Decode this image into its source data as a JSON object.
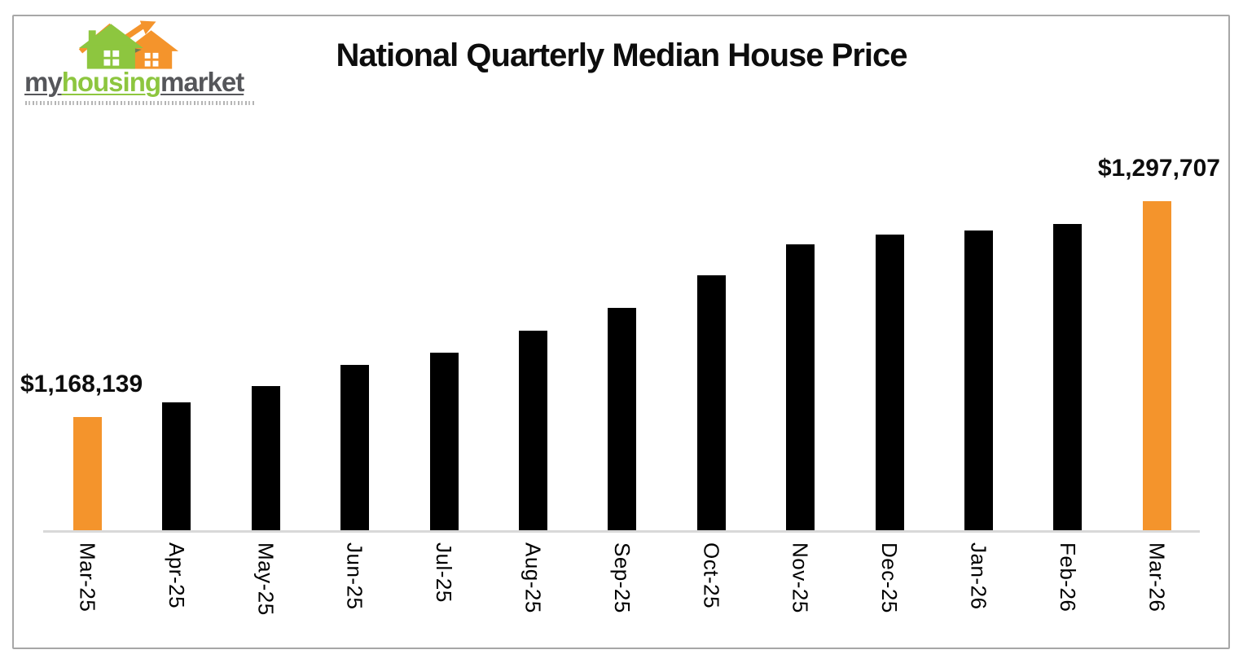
{
  "logo": {
    "wordmark_part1": "my",
    "wordmark_part2": "housing",
    "wordmark_part3": "market",
    "icon": "two-houses-with-rising-arrow",
    "colors": {
      "green": "#8dc63f",
      "gray": "#55565a",
      "orange": "#f4942c"
    }
  },
  "header": {
    "title": "National Quarterly Median House Price"
  },
  "chart_data": {
    "type": "bar",
    "title": "National Quarterly Median House Price",
    "categories": [
      "Mar-25",
      "Apr-25",
      "May-25",
      "Jun-25",
      "Jul-25",
      "Aug-25",
      "Sep-25",
      "Oct-25",
      "Nov-25",
      "Dec-25",
      "Jan-26",
      "Feb-26",
      "Mar-26"
    ],
    "values": [
      1168139,
      1176800,
      1186500,
      1199200,
      1206600,
      1219800,
      1233500,
      1253000,
      1271600,
      1277500,
      1279900,
      1283800,
      1297707
    ],
    "data_labels": [
      {
        "index": 0,
        "text": "$1,168,139"
      },
      {
        "index": 12,
        "text": "$1,297,707"
      }
    ],
    "bar_color": "#000000",
    "highlight_color": "#f4942c",
    "highlight_indexes": [
      0,
      12
    ],
    "xlabel": "",
    "ylabel": "",
    "ylim": [
      1100000,
      1310000
    ],
    "grid": false,
    "legend": false,
    "x_tick_rotation": 90,
    "axis_line_color": "#d9d9d9"
  }
}
